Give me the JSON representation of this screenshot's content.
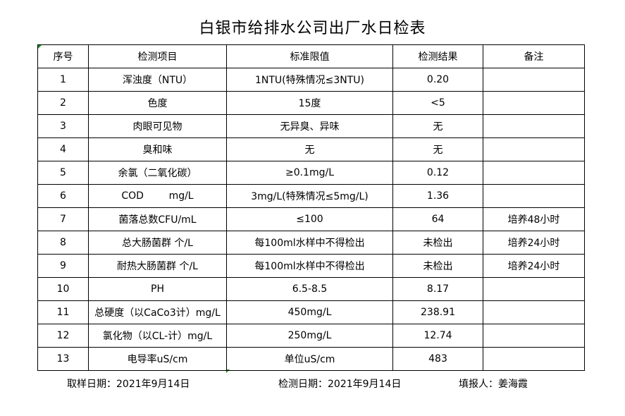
{
  "title": "白银市给排水公司出厂水日检表",
  "headers": [
    "序号",
    "检测项目",
    "标准限值",
    "检测结果",
    "备注"
  ],
  "rows": [
    [
      "1",
      "浑浊度（NTU）",
      "1NTU(特殊情况≤3NTU)",
      "0.20",
      ""
    ],
    [
      "2",
      "色度",
      "15度",
      "<5",
      ""
    ],
    [
      "3",
      "肉眼可见物",
      "无异臭、异味",
      "无",
      ""
    ],
    [
      "4",
      "臭和味",
      "无",
      "无",
      ""
    ],
    [
      "5",
      "余氯（二氧化碳）",
      "≥0.1mg/L",
      "0.12",
      ""
    ],
    [
      "6",
      "COD        mg/L",
      "3mg/L(特殊情况≤5mg/L)",
      "1.36",
      ""
    ],
    [
      "7",
      "菌落总数CFU/mL",
      "≤100",
      "64",
      "培养48小时"
    ],
    [
      "8",
      "总大肠菌群 个/L",
      "每100ml水样中不得检出",
      "未检出",
      "培养24小时"
    ],
    [
      "9",
      "耐热大肠菌群 个/L",
      "每100ml水样中不得检出",
      "未检出",
      "培养24小时"
    ],
    [
      "10",
      "PH",
      "6.5-8.5",
      "8.17",
      ""
    ],
    [
      "11",
      "总硬度（以CaCo3计）mg/L",
      "450mg/L",
      "238.91",
      ""
    ],
    [
      "12",
      "氯化物（以CL-计）mg/L",
      "250mg/L",
      "12.74",
      ""
    ],
    [
      "13",
      "电导率uS/cm",
      "单位uS/cm",
      "483",
      ""
    ]
  ],
  "footer": {
    "sampling_date": "取样日期：2021年9月14日",
    "test_date": "检测日期：2021年9月14日",
    "reporter": "填报人：姜海霞"
  }
}
